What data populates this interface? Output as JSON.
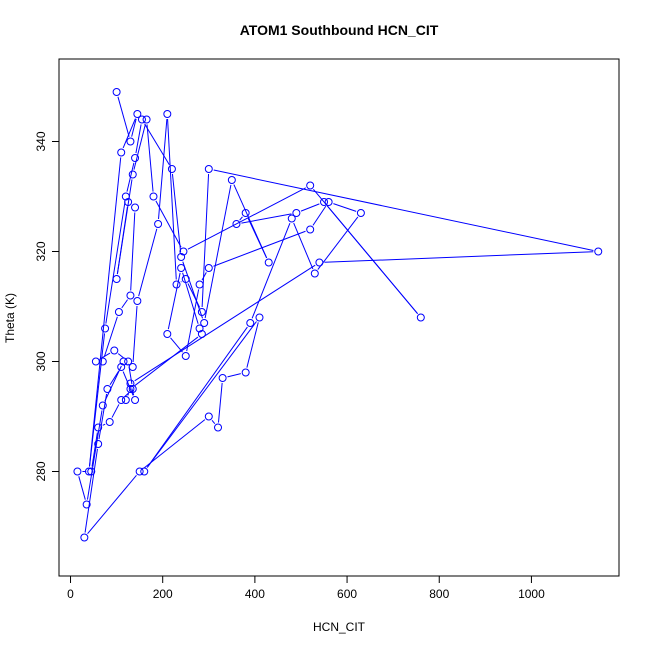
{
  "chart_data": {
    "type": "line",
    "title": "ATOM1 Southbound HCN_CIT",
    "xlabel": "HCN_CIT",
    "ylabel": "Theta (K)",
    "xlim": [
      -25,
      1190
    ],
    "ylim": [
      261,
      355
    ],
    "x_ticks": [
      0,
      200,
      400,
      600,
      800,
      1000
    ],
    "y_ticks": [
      280,
      300,
      320,
      340
    ],
    "grid": false,
    "legend": "none",
    "color": "#0000ff",
    "series": [
      {
        "x": [
          100,
          130,
          145,
          110,
          40,
          75,
          120,
          140,
          155,
          220,
          240,
          290,
          350,
          430,
          380,
          360,
          490,
          550,
          760,
          520,
          245,
          180,
          165,
          135,
          100,
          125,
          140,
          130,
          105,
          70,
          55,
          95,
          125,
          135,
          110,
          85,
          60,
          45,
          15,
          35,
          70,
          115,
          135,
          145,
          190,
          210,
          230,
          250,
          285,
          300,
          1145,
          540,
          130,
          140,
          110,
          80,
          60,
          30,
          150,
          300,
          320,
          330,
          380,
          410,
          160,
          390,
          480,
          530,
          630,
          560,
          520,
          300,
          280,
          250,
          210,
          240,
          280,
          285,
          130,
          120
        ],
        "y": [
          349,
          340,
          345,
          338,
          280,
          306,
          330,
          337,
          344,
          335,
          319,
          307,
          333,
          318,
          327,
          325,
          327,
          329,
          308,
          332,
          320,
          330,
          344,
          334,
          315,
          329,
          328,
          312,
          309,
          300,
          300,
          302,
          300,
          295,
          293,
          289,
          288,
          280,
          280,
          274,
          292,
          300,
          299,
          311,
          325,
          345,
          314,
          315,
          309,
          335,
          320,
          318,
          296,
          293,
          299,
          295,
          285,
          268,
          280,
          290,
          288,
          297,
          298,
          308,
          280,
          307,
          326,
          316,
          327,
          329,
          324,
          317,
          314,
          301,
          305,
          317,
          306,
          305,
          295,
          293
        ]
      }
    ]
  }
}
